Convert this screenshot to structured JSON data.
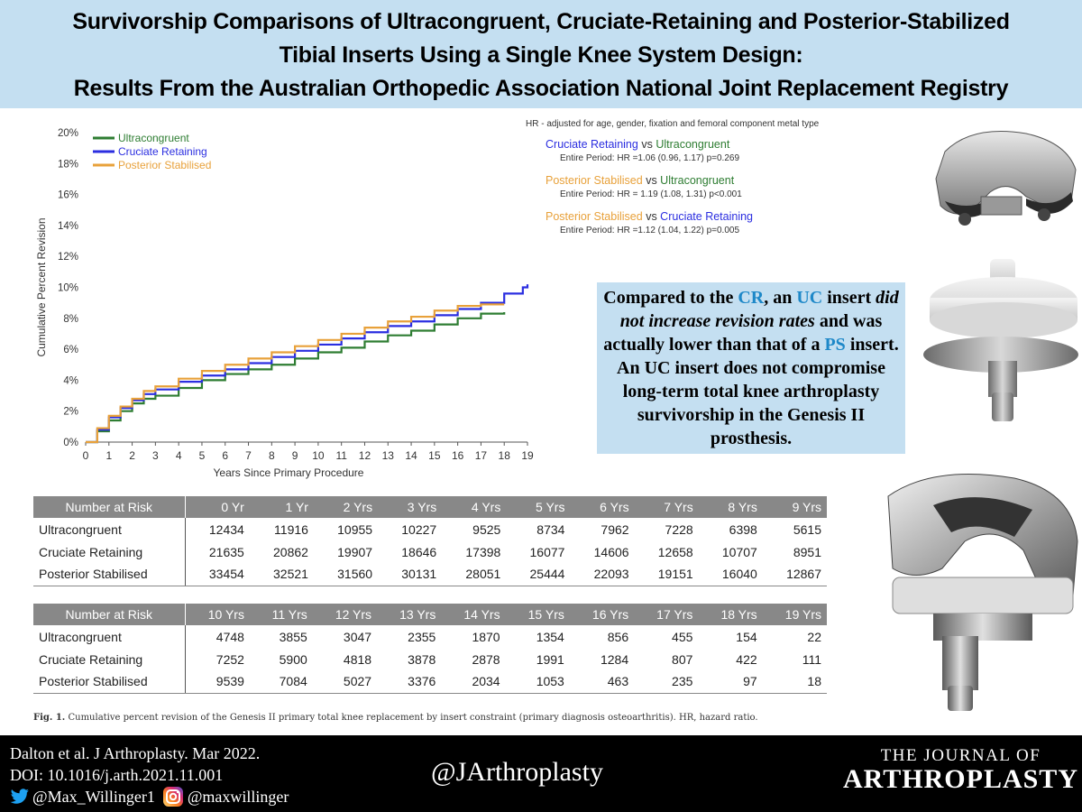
{
  "title": {
    "lines": [
      "Survivorship Comparisons of Ultracongruent, Cruciate-Retaining and Posterior-Stabilized",
      "Tibial Inserts Using a Single Knee System Design:",
      "Results From the Australian Orthopedic Association National Joint Replacement Registry"
    ]
  },
  "chart_data": {
    "type": "line",
    "xlabel": "Years Since Primary Procedure",
    "ylabel": "Cumulative Percent Revision",
    "xlim": [
      0,
      19
    ],
    "ylim": [
      0,
      20
    ],
    "x_ticks": [
      "0",
      "1",
      "2",
      "3",
      "4",
      "5",
      "6",
      "7",
      "8",
      "9",
      "10",
      "11",
      "12",
      "13",
      "14",
      "15",
      "16",
      "17",
      "18",
      "19"
    ],
    "y_ticks": [
      "0%",
      "2%",
      "4%",
      "6%",
      "8%",
      "10%",
      "12%",
      "14%",
      "16%",
      "18%",
      "20%"
    ],
    "legend_position": "top-left",
    "grid": false,
    "series": [
      {
        "name": "Ultracongruent",
        "color": "#2e7d32",
        "points": [
          [
            0,
            0
          ],
          [
            0.5,
            0.7
          ],
          [
            1,
            1.4
          ],
          [
            1.5,
            2.0
          ],
          [
            2,
            2.5
          ],
          [
            2.5,
            2.8
          ],
          [
            3,
            3.0
          ],
          [
            4,
            3.5
          ],
          [
            5,
            4.0
          ],
          [
            6,
            4.4
          ],
          [
            7,
            4.7
          ],
          [
            8,
            5.0
          ],
          [
            9,
            5.4
          ],
          [
            10,
            5.8
          ],
          [
            11,
            6.1
          ],
          [
            12,
            6.5
          ],
          [
            13,
            6.9
          ],
          [
            14,
            7.2
          ],
          [
            15,
            7.6
          ],
          [
            16,
            8.0
          ],
          [
            17,
            8.3
          ],
          [
            18,
            8.4
          ]
        ]
      },
      {
        "name": "Cruciate Retaining",
        "color": "#2b2ee0",
        "points": [
          [
            0,
            0
          ],
          [
            0.5,
            0.8
          ],
          [
            1,
            1.6
          ],
          [
            1.5,
            2.2
          ],
          [
            2,
            2.7
          ],
          [
            2.5,
            3.1
          ],
          [
            3,
            3.4
          ],
          [
            4,
            3.9
          ],
          [
            5,
            4.3
          ],
          [
            6,
            4.7
          ],
          [
            7,
            5.1
          ],
          [
            8,
            5.5
          ],
          [
            9,
            5.9
          ],
          [
            10,
            6.3
          ],
          [
            11,
            6.7
          ],
          [
            12,
            7.1
          ],
          [
            13,
            7.5
          ],
          [
            14,
            7.8
          ],
          [
            15,
            8.2
          ],
          [
            16,
            8.6
          ],
          [
            17,
            9.0
          ],
          [
            18,
            9.6
          ],
          [
            18.8,
            10.0
          ],
          [
            19,
            10.2
          ]
        ]
      },
      {
        "name": "Posterior Stabilised",
        "color": "#e8a13a",
        "points": [
          [
            0,
            0
          ],
          [
            0.5,
            0.9
          ],
          [
            1,
            1.7
          ],
          [
            1.5,
            2.3
          ],
          [
            2,
            2.8
          ],
          [
            2.5,
            3.3
          ],
          [
            3,
            3.6
          ],
          [
            4,
            4.1
          ],
          [
            5,
            4.6
          ],
          [
            6,
            5.0
          ],
          [
            7,
            5.4
          ],
          [
            8,
            5.8
          ],
          [
            9,
            6.2
          ],
          [
            10,
            6.6
          ],
          [
            11,
            7.0
          ],
          [
            12,
            7.4
          ],
          [
            13,
            7.8
          ],
          [
            14,
            8.1
          ],
          [
            15,
            8.5
          ],
          [
            16,
            8.8
          ],
          [
            17,
            8.9
          ],
          [
            18,
            8.9
          ]
        ]
      }
    ]
  },
  "hr": {
    "note": "HR - adjusted for age, gender, fixation and femoral component metal type",
    "vs": "vs",
    "comparisons": [
      {
        "a": "Cruciate Retaining",
        "a_color": "#2b2ee0",
        "b": "Ultracongruent",
        "b_color": "#2e7d32",
        "detail": "Entire Period: HR =1.06 (0.96, 1.17) p=0.269"
      },
      {
        "a": "Posterior Stabilised",
        "a_color": "#e8a13a",
        "b": "Ultracongruent",
        "b_color": "#2e7d32",
        "detail": "Entire Period: HR = 1.19 (1.08, 1.31) p<0.001"
      },
      {
        "a": "Posterior Stabilised",
        "a_color": "#e8a13a",
        "b": "Cruciate Retaining",
        "b_color": "#2b2ee0",
        "detail": "Entire Period: HR =1.12 (1.04, 1.22) p=0.005"
      }
    ]
  },
  "callout": {
    "p1": "Compared to the ",
    "cr": "CR",
    "p2": ", an ",
    "uc": "UC",
    "p3": " insert ",
    "italic": "did not increase revision rates",
    "p4": " and was actually lower than that of a ",
    "ps": "PS",
    "p5": " insert. An UC insert does not compromise long-term total knee arthroplasty survivorship in the Genesis II prosthesis."
  },
  "risk_tables": [
    {
      "header_label": "Number at Risk",
      "columns": [
        "0 Yr",
        "1 Yr",
        "2 Yrs",
        "3 Yrs",
        "4 Yrs",
        "5 Yrs",
        "6 Yrs",
        "7 Yrs",
        "8 Yrs",
        "9 Yrs"
      ],
      "rows": [
        {
          "label": "Ultracongruent",
          "values": [
            "12434",
            "11916",
            "10955",
            "10227",
            "9525",
            "8734",
            "7962",
            "7228",
            "6398",
            "5615"
          ]
        },
        {
          "label": "Cruciate Retaining",
          "values": [
            "21635",
            "20862",
            "19907",
            "18646",
            "17398",
            "16077",
            "14606",
            "12658",
            "10707",
            "8951"
          ]
        },
        {
          "label": "Posterior Stabilised",
          "values": [
            "33454",
            "32521",
            "31560",
            "30131",
            "28051",
            "25444",
            "22093",
            "19151",
            "16040",
            "12867"
          ]
        }
      ]
    },
    {
      "header_label": "Number at Risk",
      "columns": [
        "10 Yrs",
        "11 Yrs",
        "12 Yrs",
        "13 Yrs",
        "14 Yrs",
        "15 Yrs",
        "16 Yrs",
        "17 Yrs",
        "18 Yrs",
        "19 Yrs"
      ],
      "rows": [
        {
          "label": "Ultracongruent",
          "values": [
            "4748",
            "3855",
            "3047",
            "2355",
            "1870",
            "1354",
            "856",
            "455",
            "154",
            "22"
          ]
        },
        {
          "label": "Cruciate Retaining",
          "values": [
            "7252",
            "5900",
            "4818",
            "3878",
            "2878",
            "1991",
            "1284",
            "807",
            "422",
            "111"
          ]
        },
        {
          "label": "Posterior Stabilised",
          "values": [
            "9539",
            "7084",
            "5027",
            "3376",
            "2034",
            "1053",
            "463",
            "235",
            "97",
            "18"
          ]
        }
      ]
    }
  ],
  "caption": {
    "label": "Fig. 1.",
    "text": "Cumulative percent revision of the Genesis II primary total knee replacement by insert constraint (primary diagnosis osteoarthritis). HR, hazard ratio."
  },
  "footer": {
    "citation": "Dalton et al. J Arthroplasty. Mar 2022.",
    "doi": "DOI: 10.1016/j.arth.2021.11.001",
    "twitter": "@Max_Willinger1",
    "instagram": "@maxwillinger",
    "center_handle": "@JArthroplasty",
    "journal_top": "THE JOURNAL OF",
    "journal_main": "ARTHROPLASTY"
  },
  "colors": {
    "banner": "#c4dff1",
    "highlight": "#1e88c8",
    "table_header": "#888888"
  }
}
